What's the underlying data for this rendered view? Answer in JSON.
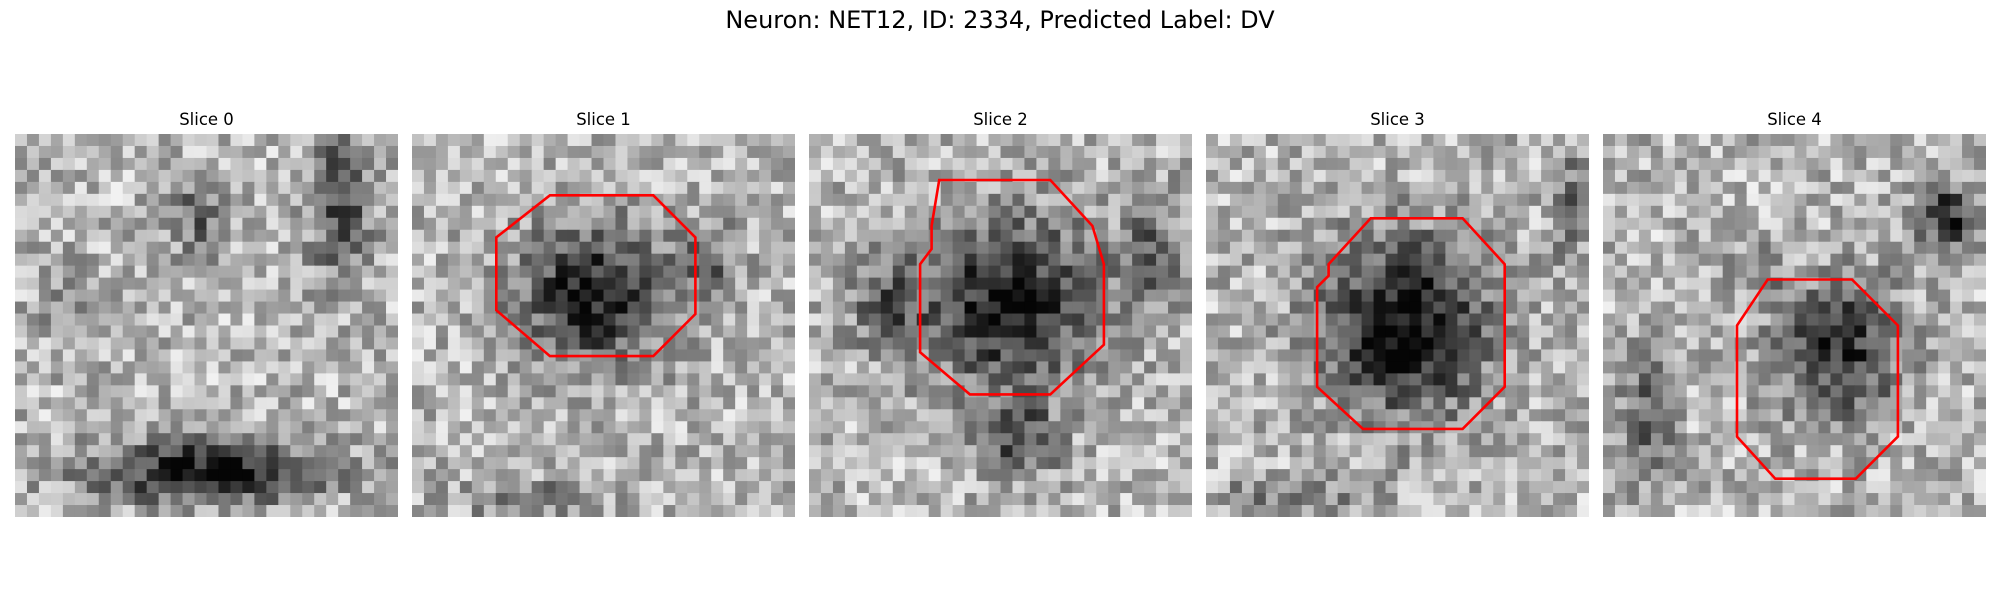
{
  "figure": {
    "title": "Neuron: NET12, ID: 2334, Predicted Label: DV"
  },
  "slices": [
    {
      "title": "Slice 0",
      "has_contour": false
    },
    {
      "title": "Slice 1",
      "has_contour": true
    },
    {
      "title": "Slice 2",
      "has_contour": true
    },
    {
      "title": "Slice 3",
      "has_contour": true
    },
    {
      "title": "Slice 4",
      "has_contour": true
    }
  ],
  "style": {
    "contour_color": "#ff0000",
    "colormap": "gray"
  }
}
